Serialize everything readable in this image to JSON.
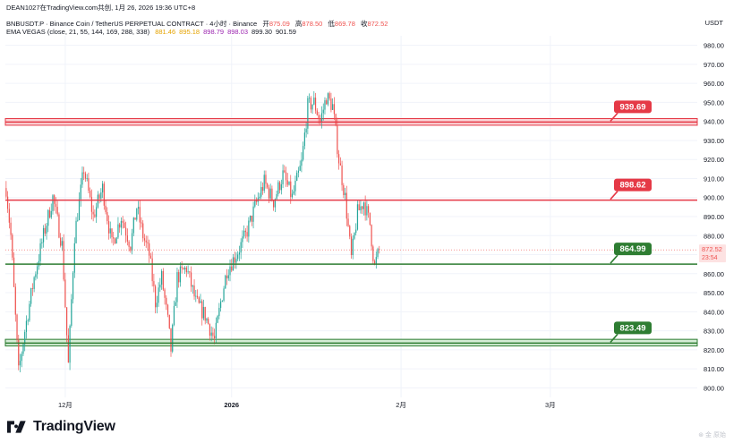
{
  "header": {
    "publisher": "DEAN1027在TradingView.com共创, 1月 26, 2026 19:36 UTC+8",
    "symbol_line": "BNBUSDT.P · Binance Coin / TetherUS PERPETUAL CONTRACT · 4小时 · Binance",
    "ohlc": [
      {
        "label": "开",
        "value": "875.09"
      },
      {
        "label": "高",
        "value": "878.50"
      },
      {
        "label": "低",
        "value": "869.78"
      },
      {
        "label": "收",
        "value": "872.52"
      }
    ],
    "indicator_name": "EMA VEGAS (close, 21, 55, 144, 169, 288, 338)",
    "indicator_values": [
      "881.46",
      "895.18",
      "898.79",
      "898.03",
      "899.30",
      "901.59"
    ],
    "indicator_colors": [
      "#e5a300",
      "#e5a300",
      "#9c27b0",
      "#9c27b0",
      "#131722",
      "#131722"
    ]
  },
  "currency": "USDT",
  "logo_text": "TradingView",
  "watermark": "⊛ 金 原始",
  "chart_data": {
    "type": "candlestick",
    "ylim": [
      795,
      985
    ],
    "y_ticks": [
      980,
      970,
      960,
      950,
      940,
      930,
      920,
      910,
      900,
      890,
      880,
      870,
      860,
      850,
      840,
      830,
      820,
      810,
      800
    ],
    "x_ticks": [
      {
        "label": "12月",
        "index": 38
      },
      {
        "label": "2026",
        "index": 145
      },
      {
        "label": "2月",
        "index": 254
      },
      {
        "label": "3月",
        "index": 350
      }
    ],
    "bar_count": 445,
    "last_index": 240,
    "current_price": {
      "value": "872.52",
      "countdown": "23:54"
    },
    "levels": [
      {
        "label": "939.69",
        "price": 939.69,
        "zone": [
          938,
          941.5
        ],
        "color": "#e53946"
      },
      {
        "label": "898.62",
        "price": 898.62,
        "color": "#e53946"
      },
      {
        "label": "864.99",
        "price": 864.99,
        "color": "#2e7d32"
      },
      {
        "label": "823.49",
        "price": 823.49,
        "zone": [
          822,
          825.5
        ],
        "color": "#2e7d32"
      }
    ],
    "colors": {
      "up": "#26a69a",
      "down": "#ef5350",
      "grid": "#f0f3fa",
      "axis_text": "#131722"
    },
    "anchors": [
      [
        0,
        905
      ],
      [
        3,
        880
      ],
      [
        8,
        808
      ],
      [
        12,
        830
      ],
      [
        18,
        858
      ],
      [
        24,
        880
      ],
      [
        30,
        900
      ],
      [
        36,
        875
      ],
      [
        40,
        812
      ],
      [
        44,
        880
      ],
      [
        50,
        915
      ],
      [
        56,
        890
      ],
      [
        62,
        905
      ],
      [
        68,
        875
      ],
      [
        74,
        890
      ],
      [
        80,
        875
      ],
      [
        84,
        895
      ],
      [
        88,
        880
      ],
      [
        92,
        870
      ],
      [
        96,
        845
      ],
      [
        100,
        858
      ],
      [
        104,
        835
      ],
      [
        106,
        820
      ],
      [
        110,
        858
      ],
      [
        116,
        863
      ],
      [
        122,
        845
      ],
      [
        128,
        838
      ],
      [
        134,
        825
      ],
      [
        138,
        845
      ],
      [
        142,
        862
      ],
      [
        148,
        870
      ],
      [
        154,
        880
      ],
      [
        160,
        895
      ],
      [
        166,
        908
      ],
      [
        172,
        898
      ],
      [
        178,
        912
      ],
      [
        184,
        900
      ],
      [
        190,
        918
      ],
      [
        194,
        948
      ],
      [
        198,
        950
      ],
      [
        202,
        940
      ],
      [
        206,
        953
      ],
      [
        210,
        948
      ],
      [
        214,
        920
      ],
      [
        218,
        900
      ],
      [
        222,
        868
      ],
      [
        226,
        892
      ],
      [
        230,
        898
      ],
      [
        234,
        886
      ],
      [
        236,
        870
      ],
      [
        237,
        864
      ],
      [
        240,
        872.52
      ]
    ]
  }
}
